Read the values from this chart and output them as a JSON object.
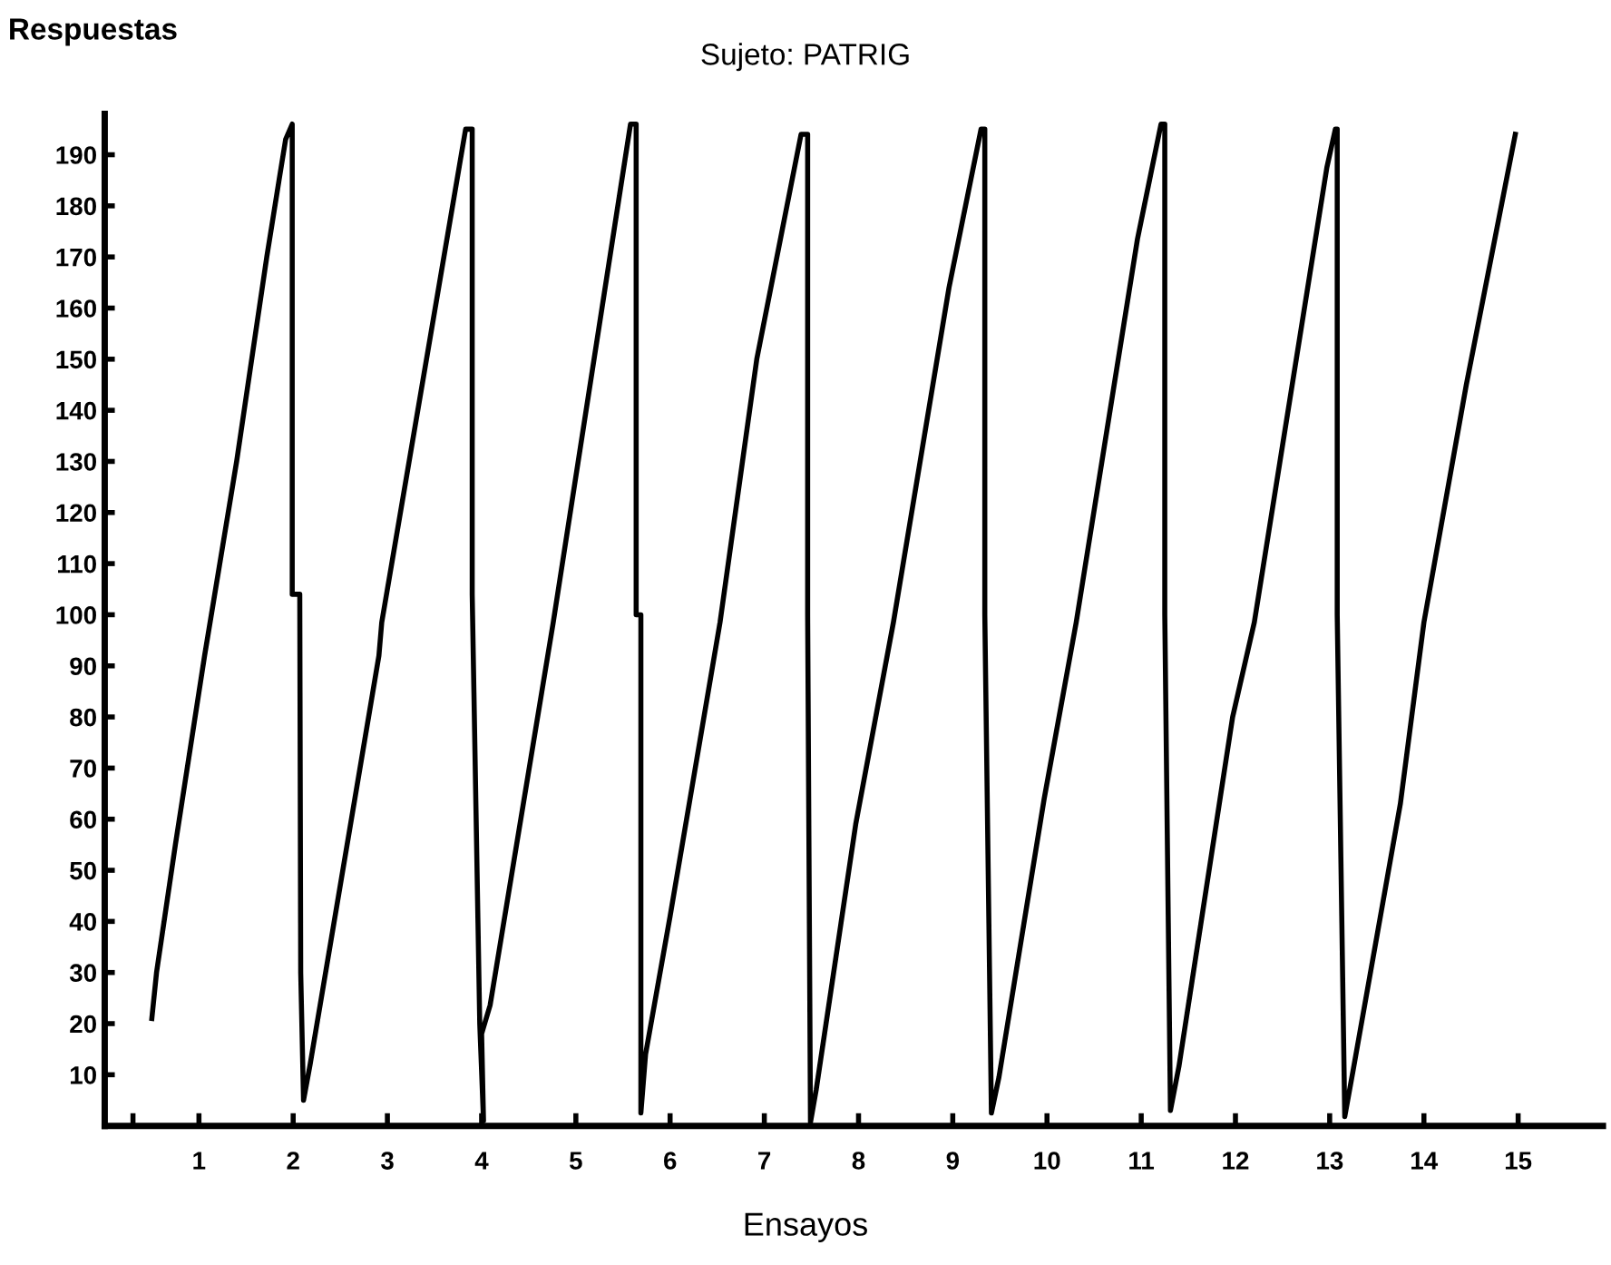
{
  "chart_data": {
    "type": "line",
    "title": "Sujeto: PATRIG",
    "xlabel": "Ensayos",
    "ylabel": "Respuestas",
    "xlim": [
      0,
      15.9
    ],
    "ylim": [
      0,
      198
    ],
    "xticks": [
      {
        "value": 0.3,
        "label": null
      },
      1,
      2,
      3,
      4,
      5,
      6,
      7,
      8,
      9,
      10,
      11,
      12,
      13,
      14,
      15
    ],
    "yticks": [
      10,
      20,
      30,
      40,
      50,
      60,
      70,
      80,
      90,
      100,
      110,
      120,
      130,
      140,
      150,
      160,
      170,
      180,
      190
    ],
    "grid": false,
    "marker": "none",
    "line_style": "solid",
    "series": [
      {
        "color": "#000000",
        "x": [
          0.5,
          0.55,
          0.75,
          1.06,
          1.4,
          1.72,
          1.85,
          1.92,
          1.99,
          1.99,
          2.07,
          2.08,
          2.11,
          2.18,
          2.91,
          2.94,
          3.83,
          3.9,
          3.9,
          3.98,
          4.02,
          4.0,
          4.09,
          4.76,
          5.58,
          5.64,
          5.64,
          5.69,
          5.69,
          5.74,
          6.0,
          6.53,
          6.92,
          7.39,
          7.46,
          7.46,
          7.49,
          7.55,
          7.97,
          8.37,
          8.96,
          9.3,
          9.34,
          9.34,
          9.41,
          9.49,
          9.97,
          10.31,
          10.96,
          11.21,
          11.25,
          11.25,
          11.31,
          11.4,
          11.97,
          12.2,
          12.97,
          13.06,
          13.08,
          13.08,
          13.16,
          13.25,
          13.75,
          14.0,
          14.45,
          14.97
        ],
        "values": [
          21,
          30,
          55,
          92,
          130,
          170,
          185,
          193,
          196,
          104,
          104,
          30,
          5,
          12,
          92,
          98.5,
          195,
          195,
          104,
          20,
          1,
          18,
          23.6,
          98.5,
          196,
          196,
          100,
          100,
          2.5,
          14,
          41,
          98.5,
          150,
          194,
          194,
          100,
          0.7,
          7,
          59,
          98.5,
          164,
          195,
          195,
          100,
          2.5,
          9.5,
          64,
          98.5,
          173.5,
          196,
          196,
          100,
          3,
          11.6,
          80,
          98.5,
          187.5,
          195,
          195,
          100,
          1.8,
          11,
          63,
          98.5,
          145,
          194
        ]
      }
    ]
  }
}
